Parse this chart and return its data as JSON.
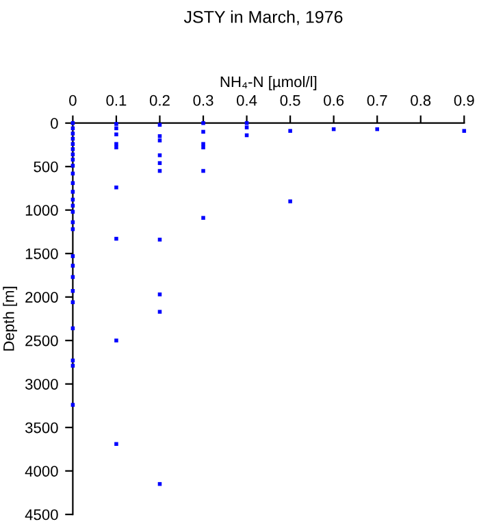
{
  "chart_data": {
    "type": "scatter",
    "title": "JSTY in March, 1976",
    "xlabel": "NH₄-N [µmol/l]",
    "ylabel": "Depth [m]",
    "series": [
      {
        "color": "#0000ff",
        "x": [
          0,
          0,
          0,
          0,
          0,
          0,
          0,
          0,
          0,
          0,
          0,
          0,
          0,
          0,
          0,
          0,
          0,
          0,
          0,
          0,
          0,
          0,
          0,
          0,
          0,
          0,
          0.1,
          0.1,
          0.1,
          0.1,
          0.1,
          0.1,
          0.1,
          0.1,
          0.1,
          0.2,
          0.2,
          0.2,
          0.2,
          0.2,
          0.2,
          0.2,
          0.2,
          0.2,
          0.2,
          0.3,
          0.3,
          0.3,
          0.3,
          0.3,
          0.3,
          0.4,
          0.4,
          0.4,
          0.5,
          0.5,
          0.6,
          0.7,
          0.9
        ],
        "values": [
          0,
          60,
          120,
          180,
          240,
          300,
          360,
          420,
          490,
          580,
          690,
          790,
          880,
          950,
          1020,
          1140,
          1220,
          1530,
          1640,
          1770,
          1930,
          2060,
          2360,
          2730,
          2790,
          3240,
          10,
          60,
          130,
          240,
          280,
          740,
          1330,
          2500,
          3690,
          20,
          150,
          200,
          370,
          460,
          550,
          1340,
          1970,
          2170,
          4150,
          0,
          100,
          240,
          280,
          550,
          1090,
          0,
          50,
          140,
          90,
          900,
          70,
          70,
          90
        ]
      }
    ],
    "marker": "square",
    "xlim": [
      0,
      0.9
    ],
    "xticks": [
      0,
      0.1,
      0.2,
      0.3,
      0.4,
      0.5,
      0.6,
      0.7,
      0.8,
      0.9
    ],
    "ylim": [
      4500,
      0
    ],
    "yticks": [
      0,
      500,
      1000,
      1500,
      2000,
      2500,
      3000,
      3500,
      4000,
      4500
    ],
    "grid": false,
    "legend": false
  }
}
